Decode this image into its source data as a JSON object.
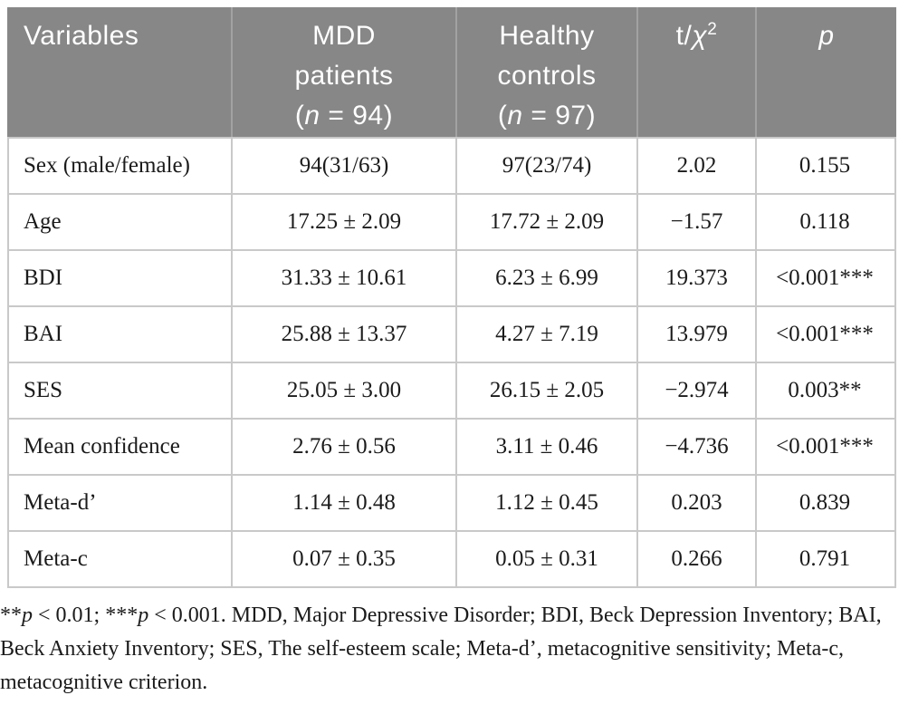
{
  "colors": {
    "header_bg": "#878787",
    "header_text": "#ffffff",
    "header_divider": "#a2a2a2",
    "body_border": "#c9c9c9",
    "body_text": "#1b1b1b"
  },
  "table": {
    "header": {
      "variables": "Variables",
      "mdd": {
        "line1": "MDD",
        "line2": "patients",
        "n_open": "(",
        "n_italic": "n",
        "n_rest": " = 94)"
      },
      "healthy": {
        "line1": "Healthy",
        "line2": "controls",
        "n_open": "(",
        "n_italic": "n",
        "n_rest": " = 97)"
      },
      "stat": {
        "pre": "t/",
        "chi": "χ",
        "sup": "2"
      },
      "p": "p"
    },
    "rows": [
      [
        "Sex (male/female)",
        "94(31/63)",
        "97(23/74)",
        "2.02",
        "0.155"
      ],
      [
        "Age",
        "17.25 ± 2.09",
        "17.72 ± 2.09",
        "−1.57",
        "0.118"
      ],
      [
        "BDI",
        "31.33 ± 10.61",
        "6.23 ± 6.99",
        "19.373",
        "<0.001***"
      ],
      [
        "BAI",
        "25.88 ± 13.37",
        "4.27 ± 7.19",
        "13.979",
        "<0.001***"
      ],
      [
        "SES",
        "25.05 ± 3.00",
        "26.15 ± 2.05",
        "−2.974",
        "0.003**"
      ],
      [
        "Mean confidence",
        "2.76 ± 0.56",
        "3.11 ± 0.46",
        "−4.736",
        "<0.001***"
      ],
      [
        "Meta-d’",
        "1.14 ± 0.48",
        "1.12 ± 0.45",
        "0.203",
        "0.839"
      ],
      [
        "Meta-c",
        "0.07 ± 0.35",
        "0.05 ± 0.31",
        "0.266",
        "0.791"
      ]
    ]
  },
  "footnote": {
    "stars1": "**",
    "p1": "p",
    "seg1": " < 0.01; ",
    "stars2": "***",
    "p2": "p",
    "seg2": " < 0.001. MDD, Major Depressive Disorder; BDI, Beck Depression Inventory; BAI, Beck Anxiety Inventory; SES, The self-esteem scale; Meta-d’, metacognitive sensitivity; Meta-c, metacognitive criterion."
  }
}
